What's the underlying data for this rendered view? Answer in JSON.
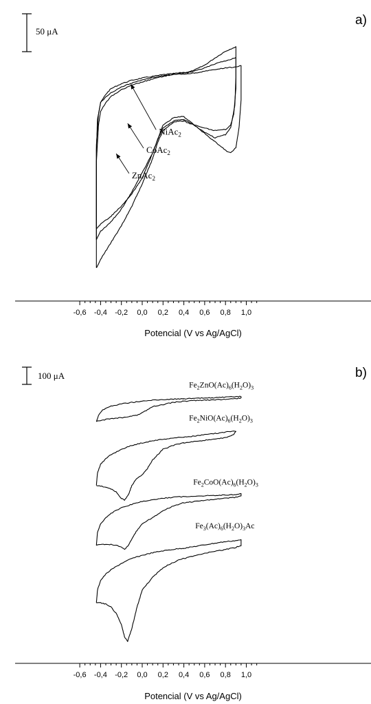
{
  "chart_data": [
    {
      "type": "line",
      "panel_label": "a)",
      "xlabel": "Potencial (V vs Ag/AgCl)",
      "xlim": [
        -0.6,
        1.1
      ],
      "xticks": [
        "-0,6",
        "-0,4",
        "-0,2",
        "0,0",
        "0,2",
        "0,4",
        "0,6",
        "0,8",
        "1,0"
      ],
      "scale_bar": "50 μA",
      "scale_bar_uA": 50,
      "ylim_uA": [
        -270,
        210
      ],
      "series": [
        {
          "name": "NiAc2",
          "x": [
            -0.44,
            -0.44,
            -0.43,
            -0.4,
            -0.35,
            -0.3,
            -0.2,
            -0.1,
            0.0,
            0.1,
            0.2,
            0.3,
            0.35,
            0.39,
            0.4,
            0.45,
            0.5,
            0.6,
            0.7,
            0.8,
            0.9,
            0.9,
            0.89,
            0.85,
            0.8,
            0.7,
            0.6,
            0.5,
            0.4,
            0.39,
            0.35,
            0.3,
            0.2,
            0.15,
            0.1,
            0.0,
            -0.1,
            -0.2,
            -0.3,
            -0.4,
            -0.44
          ],
          "y": [
            -200,
            -40,
            15,
            45,
            60,
            70,
            79,
            85,
            89,
            92,
            95,
            97,
            98,
            99,
            99,
            100,
            103,
            112,
            125,
            137,
            145,
            90,
            40,
            0,
            -12,
            -18,
            -8,
            5,
            20,
            20,
            20,
            18,
            5,
            -20,
            -45,
            -80,
            -115,
            -145,
            -168,
            -185,
            -200
          ]
        },
        {
          "name": "CoAc2",
          "x": [
            -0.44,
            -0.44,
            -0.42,
            -0.4,
            -0.35,
            -0.3,
            -0.2,
            -0.1,
            0.0,
            0.1,
            0.2,
            0.3,
            0.35,
            0.39,
            0.4,
            0.45,
            0.5,
            0.6,
            0.7,
            0.8,
            0.9,
            0.9,
            0.88,
            0.85,
            0.8,
            0.7,
            0.6,
            0.5,
            0.4,
            0.39,
            0.35,
            0.3,
            0.2,
            0.15,
            0.1,
            0.0,
            -0.1,
            -0.2,
            -0.3,
            -0.4,
            -0.44
          ],
          "y": [
            -180,
            -30,
            25,
            45,
            55,
            63,
            73,
            80,
            86,
            90,
            93,
            96,
            97,
            98,
            98,
            99,
            101,
            107,
            114,
            120,
            125,
            70,
            25,
            5,
            -3,
            -5,
            0,
            5,
            15,
            15,
            15,
            12,
            0,
            -20,
            -45,
            -90,
            -118,
            -140,
            -158,
            -172,
            -180
          ]
        },
        {
          "name": "ZnAc2",
          "x": [
            -0.44,
            -0.44,
            -0.42,
            -0.4,
            -0.35,
            -0.3,
            -0.2,
            -0.1,
            0.0,
            0.1,
            0.2,
            0.3,
            0.35,
            0.39,
            0.4,
            0.45,
            0.5,
            0.6,
            0.7,
            0.8,
            0.9,
            0.95,
            0.95,
            0.93,
            0.9,
            0.85,
            0.8,
            0.7,
            0.6,
            0.5,
            0.4,
            0.39,
            0.35,
            0.3,
            0.2,
            0.15,
            0.1,
            0.0,
            -0.1,
            -0.2,
            -0.3,
            -0.4,
            -0.44
          ],
          "y": [
            -250,
            -60,
            5,
            30,
            45,
            56,
            68,
            76,
            82,
            87,
            92,
            95,
            96,
            96,
            96,
            97,
            98,
            101,
            104,
            107,
            109,
            111,
            50,
            0,
            -35,
            -45,
            -40,
            -25,
            -10,
            5,
            12,
            12,
            12,
            10,
            -5,
            -25,
            -55,
            -100,
            -140,
            -175,
            -205,
            -235,
            -250
          ]
        }
      ],
      "annotations": [
        {
          "text": "NiAc",
          "sub": "2",
          "x": 0.16,
          "y": -12,
          "arrow_to": [
            -0.11,
            78
          ]
        },
        {
          "text": "CoAc",
          "sub": "2",
          "x": 0.04,
          "y": -45,
          "arrow_to": [
            -0.14,
            8
          ]
        },
        {
          "text": "ZnAc",
          "sub": "2",
          "x": -0.1,
          "y": -90,
          "arrow_to": [
            -0.25,
            -46
          ]
        }
      ]
    },
    {
      "type": "line",
      "panel_label": "b)",
      "xlabel": "Potencial (V vs Ag/AgCl)",
      "xlim": [
        -0.6,
        1.1
      ],
      "xticks": [
        "-0,6",
        "-0,4",
        "-0,2",
        "0,0",
        "0,2",
        "0,4",
        "0,6",
        "0,8",
        "1,0"
      ],
      "scale_bar": "100 μA",
      "scale_bar_uA": 100,
      "ylim_uA": [
        -1250,
        90
      ],
      "series": [
        {
          "name": "Fe2ZnO(Ac)6(H2O)3",
          "x": [
            -0.44,
            -0.42,
            -0.38,
            -0.3,
            -0.2,
            -0.1,
            0.0,
            0.1,
            0.2,
            0.3,
            0.39,
            0.4,
            0.5,
            0.6,
            0.7,
            0.8,
            0.9,
            0.95,
            0.95,
            0.9,
            0.8,
            0.7,
            0.6,
            0.5,
            0.4,
            0.39,
            0.3,
            0.2,
            0.1,
            0.05,
            0.0,
            -0.05,
            -0.1,
            -0.13,
            -0.16,
            -0.2,
            -0.25,
            -0.3,
            -0.35,
            -0.4,
            -0.44
          ],
          "y": [
            -110,
            -80,
            -55,
            -38,
            -27,
            -20,
            -15,
            -10,
            -7,
            -5,
            -3,
            -3,
            -2,
            0,
            2,
            4,
            6,
            8,
            0,
            -3,
            -6,
            -8,
            -10,
            -12,
            -15,
            -15,
            -20,
            -30,
            -40,
            -55,
            -70,
            -80,
            -85,
            -88,
            -90,
            -92,
            -95,
            -97,
            -100,
            -105,
            -110
          ]
        },
        {
          "name": "Fe2NiO(Ac)6(H2O)3",
          "x": [
            -0.44,
            -0.43,
            -0.4,
            -0.35,
            -0.3,
            -0.2,
            -0.1,
            0.0,
            0.1,
            0.2,
            0.3,
            0.39,
            0.4,
            0.5,
            0.6,
            0.7,
            0.8,
            0.88,
            0.9,
            0.88,
            0.8,
            0.7,
            0.6,
            0.5,
            0.4,
            0.39,
            0.3,
            0.2,
            0.1,
            0.05,
            0.0,
            -0.05,
            -0.1,
            -0.13,
            -0.17,
            -0.2,
            -0.25,
            -0.3,
            -0.35,
            -0.4,
            -0.44
          ],
          "y": [
            -410,
            -350,
            -310,
            -285,
            -265,
            -240,
            -222,
            -210,
            -200,
            -193,
            -187,
            -183,
            -183,
            -178,
            -172,
            -166,
            -160,
            -153,
            -155,
            -170,
            -185,
            -193,
            -198,
            -203,
            -210,
            -210,
            -222,
            -240,
            -290,
            -330,
            -360,
            -375,
            -410,
            -450,
            -480,
            -470,
            -440,
            -425,
            -418,
            -413,
            -410
          ]
        },
        {
          "name": "Fe2CoO(Ac)6(H2O)3",
          "x": [
            -0.44,
            -0.43,
            -0.4,
            -0.35,
            -0.3,
            -0.2,
            -0.1,
            0.0,
            0.1,
            0.2,
            0.3,
            0.39,
            0.4,
            0.5,
            0.6,
            0.7,
            0.8,
            0.9,
            0.95,
            0.95,
            0.9,
            0.8,
            0.7,
            0.6,
            0.5,
            0.4,
            0.39,
            0.3,
            0.2,
            0.1,
            0.0,
            -0.05,
            -0.1,
            -0.13,
            -0.17,
            -0.2,
            -0.25,
            -0.3,
            -0.35,
            -0.4,
            -0.44
          ],
          "y": [
            -690,
            -630,
            -590,
            -560,
            -540,
            -515,
            -498,
            -485,
            -477,
            -470,
            -465,
            -462,
            -462,
            -460,
            -458,
            -456,
            -454,
            -452,
            -450,
            -460,
            -465,
            -470,
            -475,
            -480,
            -485,
            -492,
            -492,
            -505,
            -528,
            -560,
            -590,
            -620,
            -660,
            -690,
            -710,
            -700,
            -690,
            -686,
            -686,
            -688,
            -690
          ]
        },
        {
          "name": "Fe3(Ac)6(H2O)3Ac",
          "x": [
            -0.44,
            -0.43,
            -0.4,
            -0.35,
            -0.3,
            -0.2,
            -0.1,
            0.0,
            0.1,
            0.2,
            0.3,
            0.39,
            0.4,
            0.5,
            0.6,
            0.7,
            0.8,
            0.9,
            0.95,
            0.95,
            0.9,
            0.8,
            0.7,
            0.6,
            0.5,
            0.4,
            0.39,
            0.3,
            0.2,
            0.1,
            0.0,
            -0.05,
            -0.1,
            -0.14,
            -0.17,
            -0.2,
            -0.25,
            -0.3,
            -0.35,
            -0.4,
            -0.44
          ],
          "y": [
            -960,
            -900,
            -855,
            -825,
            -805,
            -775,
            -752,
            -737,
            -725,
            -716,
            -709,
            -704,
            -704,
            -696,
            -688,
            -680,
            -673,
            -668,
            -665,
            -690,
            -700,
            -710,
            -718,
            -728,
            -740,
            -752,
            -752,
            -770,
            -795,
            -840,
            -900,
            -980,
            -1080,
            -1140,
            -1120,
            -1060,
            -1010,
            -980,
            -965,
            -960,
            -960
          ]
        }
      ],
      "annotations": [
        {
          "text": "Fe",
          "parts": [
            [
              "Fe",
              ""
            ],
            [
              "2",
              "sub"
            ],
            [
              "ZnO(Ac)",
              ""
            ],
            [
              "6",
              "sub"
            ],
            [
              "(H",
              ""
            ],
            [
              "2",
              "sub"
            ],
            [
              "O)",
              ""
            ],
            [
              "3",
              "sub"
            ]
          ],
          "x": 0.45,
          "y": 50
        },
        {
          "text": "Fe",
          "parts": [
            [
              "Fe",
              ""
            ],
            [
              "2",
              "sub"
            ],
            [
              "NiO(Ac)",
              ""
            ],
            [
              "6",
              "sub"
            ],
            [
              "(H",
              ""
            ],
            [
              "2",
              "sub"
            ],
            [
              "O)",
              ""
            ],
            [
              "3",
              "sub"
            ]
          ],
          "x": 0.45,
          "y": -105
        },
        {
          "text": "Fe",
          "parts": [
            [
              "Fe",
              ""
            ],
            [
              "2",
              "sub"
            ],
            [
              "CoO(Ac)",
              ""
            ],
            [
              "6",
              "sub"
            ],
            [
              "(H",
              ""
            ],
            [
              "2",
              "sub"
            ],
            [
              "O)",
              ""
            ],
            [
              "3",
              "sub"
            ]
          ],
          "x": 0.49,
          "y": -405
        },
        {
          "text": "Fe",
          "parts": [
            [
              "Fe",
              ""
            ],
            [
              "3",
              "sub"
            ],
            [
              "(Ac)",
              ""
            ],
            [
              "6",
              "sub"
            ],
            [
              "(H",
              ""
            ],
            [
              "2",
              "sub"
            ],
            [
              "O)",
              ""
            ],
            [
              "3",
              "sub"
            ],
            [
              "Ac",
              ""
            ]
          ],
          "x": 0.51,
          "y": -610
        }
      ]
    }
  ]
}
